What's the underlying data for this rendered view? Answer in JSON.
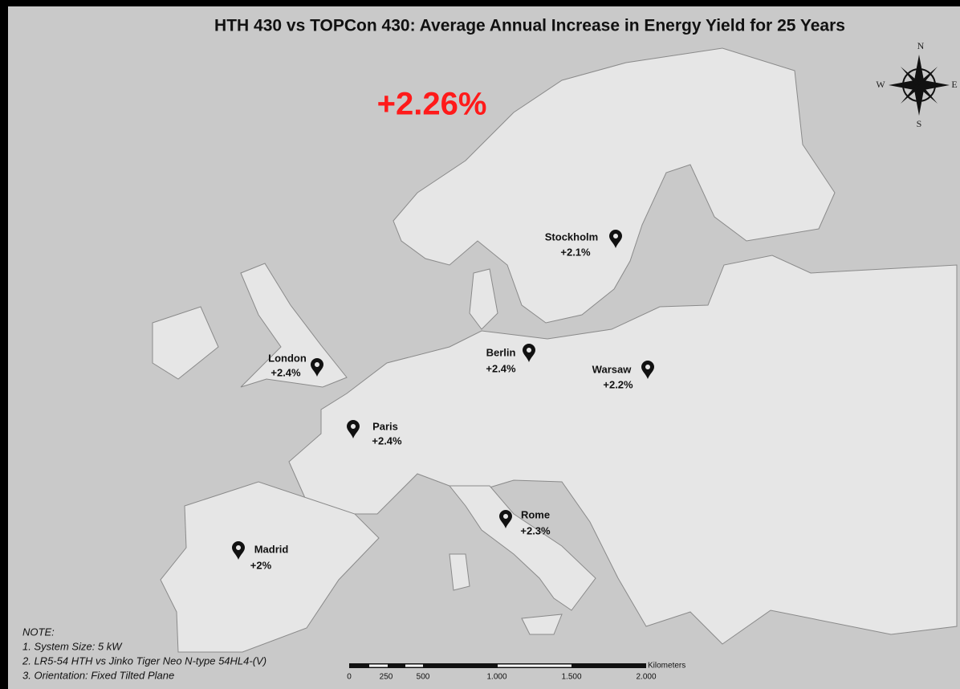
{
  "title": "HTH 430 vs TOPCon 430: Average Annual Increase in Energy Yield for 25 Years",
  "headline": "+2.26%",
  "compass": {
    "north": "N",
    "south": "S",
    "east": "E",
    "west": "W"
  },
  "cities": [
    {
      "name": "Stockholm",
      "value": "+2.1%"
    },
    {
      "name": "London",
      "value": "+2.4%"
    },
    {
      "name": "Berlin",
      "value": "+2.4%"
    },
    {
      "name": "Warsaw",
      "value": "+2.2%"
    },
    {
      "name": "Paris",
      "value": "+2.4%"
    },
    {
      "name": "Rome",
      "value": "+2.3%"
    },
    {
      "name": "Madrid",
      "value": "+2%"
    }
  ],
  "notes": {
    "heading": "NOTE:",
    "items": [
      "1. System Size: 5 kW",
      "2. LR5-54 HTH vs Jinko Tiger Neo N-type 54HL4-(V)",
      "3. Orientation: Fixed Tilted Plane"
    ]
  },
  "scale_bar": {
    "unit": "Kilometers",
    "ticks": [
      "0",
      "250",
      "500",
      "1.000",
      "1.500",
      "2.000"
    ]
  }
}
